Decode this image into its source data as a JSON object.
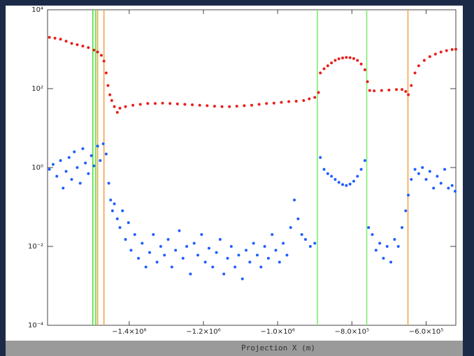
{
  "chart_data": {
    "type": "scatter",
    "log_y": true,
    "xlabel": "Projection X (m)",
    "xlim": [
      -1620000,
      -520000
    ],
    "ylim": [
      0.0001,
      10000
    ],
    "xticks": [
      {
        "value": -1400000,
        "label": "−1.4×10⁶"
      },
      {
        "value": -1200000,
        "label": "−1.2×10⁶"
      },
      {
        "value": -1000000,
        "label": "−1.0×10⁶"
      },
      {
        "value": -800000,
        "label": "−8.0×10⁵"
      },
      {
        "value": -600000,
        "label": "−6.0×10⁵"
      }
    ],
    "yticks": [
      {
        "value": 0.0001,
        "label": "10⁻⁴"
      },
      {
        "value": 0.01,
        "label": "10⁻²"
      },
      {
        "value": 1,
        "label": "10⁰"
      },
      {
        "value": 100,
        "label": "10²"
      },
      {
        "value": 10000,
        "label": "10⁴"
      }
    ],
    "vlines": [
      {
        "x": -1498000,
        "color": "#44dd33"
      },
      {
        "x": -1490000,
        "color": "#44dd33"
      },
      {
        "x": -1485000,
        "color": "#f5a040"
      },
      {
        "x": -1468000,
        "color": "#f5a040"
      },
      {
        "x": -893000,
        "color": "#77ee66"
      },
      {
        "x": -760000,
        "color": "#77ee66"
      },
      {
        "x": -649000,
        "color": "#f5a040"
      }
    ],
    "series": [
      {
        "color": "#e8201c",
        "x": [
          -1615000,
          -1600000,
          -1585000,
          -1570000,
          -1555000,
          -1540000,
          -1525000,
          -1510000,
          -1495000,
          -1485000,
          -1475000,
          -1468000,
          -1462000,
          -1457000,
          -1452000,
          -1447000,
          -1440000,
          -1432000,
          -1425000,
          -1410000,
          -1390000,
          -1370000,
          -1350000,
          -1330000,
          -1310000,
          -1290000,
          -1270000,
          -1250000,
          -1230000,
          -1210000,
          -1190000,
          -1170000,
          -1150000,
          -1130000,
          -1110000,
          -1090000,
          -1070000,
          -1050000,
          -1030000,
          -1010000,
          -990000,
          -970000,
          -950000,
          -930000,
          -915000,
          -900000,
          -890000,
          -885000,
          -875000,
          -865000,
          -855000,
          -845000,
          -835000,
          -825000,
          -815000,
          -805000,
          -795000,
          -785000,
          -775000,
          -765000,
          -758000,
          -752000,
          -740000,
          -720000,
          -700000,
          -680000,
          -665000,
          -655000,
          -648000,
          -640000,
          -630000,
          -620000,
          -605000,
          -590000,
          -575000,
          -560000,
          -545000,
          -530000,
          -520000
        ],
        "values": [
          2000,
          1900,
          1800,
          1600,
          1400,
          1300,
          1200,
          1100,
          950,
          850,
          700,
          500,
          250,
          120,
          70,
          50,
          35,
          25,
          32,
          35,
          38,
          40,
          42,
          42,
          43,
          42,
          41,
          40,
          39,
          38,
          37,
          36,
          35,
          35,
          36,
          37,
          38,
          40,
          42,
          43,
          45,
          47,
          48,
          50,
          55,
          60,
          80,
          250,
          320,
          380,
          450,
          520,
          570,
          600,
          620,
          610,
          580,
          520,
          420,
          300,
          150,
          90,
          88,
          90,
          92,
          95,
          95,
          85,
          70,
          120,
          250,
          380,
          520,
          650,
          750,
          850,
          920,
          980,
          1000
        ]
      },
      {
        "color": "#1f5fff",
        "x": [
          -1615000,
          -1605000,
          -1595000,
          -1585000,
          -1578000,
          -1570000,
          -1562000,
          -1555000,
          -1548000,
          -1540000,
          -1532000,
          -1525000,
          -1518000,
          -1510000,
          -1502000,
          -1495000,
          -1485000,
          -1478000,
          -1470000,
          -1462000,
          -1455000,
          -1450000,
          -1445000,
          -1440000,
          -1432000,
          -1425000,
          -1418000,
          -1410000,
          -1402000,
          -1395000,
          -1385000,
          -1375000,
          -1365000,
          -1355000,
          -1345000,
          -1335000,
          -1325000,
          -1315000,
          -1305000,
          -1295000,
          -1285000,
          -1275000,
          -1265000,
          -1255000,
          -1245000,
          -1235000,
          -1225000,
          -1215000,
          -1205000,
          -1195000,
          -1185000,
          -1175000,
          -1165000,
          -1155000,
          -1145000,
          -1135000,
          -1125000,
          -1115000,
          -1105000,
          -1095000,
          -1085000,
          -1075000,
          -1065000,
          -1055000,
          -1045000,
          -1035000,
          -1025000,
          -1015000,
          -1005000,
          -995000,
          -985000,
          -975000,
          -965000,
          -955000,
          -945000,
          -935000,
          -925000,
          -912000,
          -900000,
          -885000,
          -875000,
          -865000,
          -855000,
          -845000,
          -835000,
          -825000,
          -815000,
          -805000,
          -795000,
          -785000,
          -775000,
          -765000,
          -755000,
          -745000,
          -735000,
          -725000,
          -715000,
          -705000,
          -695000,
          -685000,
          -675000,
          -665000,
          -655000,
          -648000,
          -640000,
          -630000,
          -620000,
          -610000,
          -600000,
          -590000,
          -580000,
          -570000,
          -560000,
          -550000,
          -540000,
          -530000,
          -522000
        ],
        "values": [
          0.9,
          1.2,
          0.6,
          1.5,
          0.3,
          0.8,
          1.8,
          0.5,
          2.5,
          1.0,
          0.4,
          3.0,
          1.3,
          0.7,
          2.0,
          1.1,
          3.5,
          1.5,
          4.0,
          2.2,
          0.4,
          0.15,
          0.08,
          0.12,
          0.05,
          0.03,
          0.08,
          0.015,
          0.04,
          0.008,
          0.02,
          0.005,
          0.012,
          0.003,
          0.007,
          0.02,
          0.004,
          0.01,
          0.006,
          0.015,
          0.003,
          0.008,
          0.025,
          0.005,
          0.01,
          0.002,
          0.012,
          0.006,
          0.02,
          0.004,
          0.009,
          0.003,
          0.007,
          0.015,
          0.002,
          0.005,
          0.01,
          0.003,
          0.006,
          0.0015,
          0.008,
          0.004,
          0.012,
          0.006,
          0.003,
          0.01,
          0.005,
          0.02,
          0.008,
          0.004,
          0.012,
          0.006,
          0.03,
          0.15,
          0.05,
          0.02,
          0.015,
          0.01,
          0.012,
          1.8,
          0.9,
          0.7,
          0.6,
          0.5,
          0.42,
          0.37,
          0.35,
          0.38,
          0.45,
          0.6,
          0.9,
          1.5,
          0.03,
          0.02,
          0.008,
          0.012,
          0.005,
          0.01,
          0.004,
          0.015,
          0.01,
          0.03,
          0.08,
          0.2,
          0.5,
          0.9,
          0.7,
          1.0,
          0.5,
          0.8,
          0.3,
          0.6,
          0.4,
          0.9,
          0.3,
          0.35,
          0.25
        ]
      }
    ]
  }
}
